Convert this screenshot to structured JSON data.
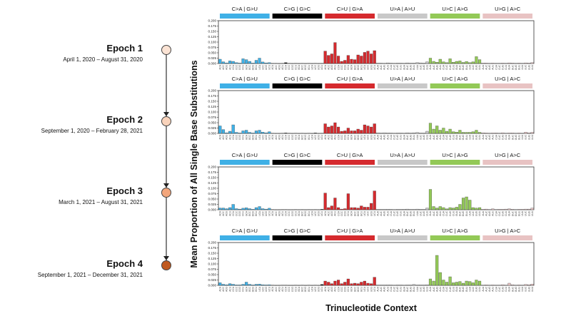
{
  "timeline": [
    {
      "label": "Epoch 1",
      "dates": "April 1, 2020 – August 31, 2020",
      "color": "#fbe3d4"
    },
    {
      "label": "Epoch 2",
      "dates": "September 1, 2020 – February 28, 2021",
      "color": "#f9d3bb"
    },
    {
      "label": "Epoch 3",
      "dates": "March 1, 2021 – August 31, 2021",
      "color": "#f3a67c"
    },
    {
      "label": "Epoch 4",
      "dates": "September 1, 2021 – December 31, 2021",
      "color": "#c0591f"
    }
  ],
  "chart_data": {
    "type": "bar",
    "ylabel": "Mean Proportion of All Single Base Substitutions",
    "xlabel": "Trinucleotide Context",
    "ylim": [
      0,
      0.2
    ],
    "yticks": [
      "0.200",
      "0.175",
      "0.150",
      "0.125",
      "0.100",
      "0.075",
      "0.050",
      "0.025",
      "0.000"
    ],
    "categories": [
      {
        "label": "C>A | G>U",
        "color": "#3fb0e6",
        "contexts": [
          "ACA",
          "ACC",
          "ACG",
          "ACU",
          "CCA",
          "CCC",
          "CCG",
          "CCU",
          "GCA",
          "GCC",
          "GCG",
          "GCU",
          "UCA",
          "UCC",
          "UCG",
          "UCU"
        ]
      },
      {
        "label": "C>G | G>C",
        "color": "#000000",
        "contexts": [
          "ACA",
          "ACC",
          "ACG",
          "ACU",
          "CCA",
          "CCC",
          "CCG",
          "CCU",
          "GCA",
          "GCC",
          "GCG",
          "GCU",
          "UCA",
          "UCC",
          "UCG",
          "UCU"
        ]
      },
      {
        "label": "C>U | G>A",
        "color": "#d52a2e",
        "contexts": [
          "ACA",
          "ACC",
          "ACG",
          "ACU",
          "CCA",
          "CCC",
          "CCG",
          "CCU",
          "GCA",
          "GCC",
          "GCG",
          "GCU",
          "UCA",
          "UCC",
          "UCG",
          "UCU"
        ]
      },
      {
        "label": "U>A | A>U",
        "color": "#c8c8c8",
        "contexts": [
          "AUA",
          "AUC",
          "AUG",
          "AUU",
          "CUA",
          "CUC",
          "CUG",
          "CUU",
          "GUA",
          "GUC",
          "GUG",
          "GUU",
          "UUA",
          "UUC",
          "UUG",
          "UUU"
        ]
      },
      {
        "label": "U>C | A>G",
        "color": "#93c957",
        "contexts": [
          "AUA",
          "AUC",
          "AUG",
          "AUU",
          "CUA",
          "CUC",
          "CUG",
          "CUU",
          "GUA",
          "GUC",
          "GUG",
          "GUU",
          "UUA",
          "UUC",
          "UUG",
          "UUU"
        ]
      },
      {
        "label": "U>G | A>C",
        "color": "#e8c3c3",
        "contexts": [
          "AUA",
          "AUC",
          "AUG",
          "AUU",
          "CUA",
          "CUC",
          "CUG",
          "CUU",
          "GUA",
          "GUC",
          "GUG",
          "GUU",
          "UUA",
          "UUC",
          "UUG",
          "UUU"
        ]
      }
    ],
    "panels": [
      {
        "name": "Epoch 1",
        "series": [
          [
            0.02,
            0.008,
            0.003,
            0.012,
            0.01,
            0.004,
            0.002,
            0.022,
            0.018,
            0.01,
            0.002,
            0.015,
            0.025,
            0.007,
            0.003,
            0.004
          ],
          [
            0.001,
            0.001,
            0.0,
            0.001,
            0.004,
            0.001,
            0.0,
            0.001,
            0.0,
            0.001,
            0.0,
            0.001,
            0.0,
            0.001,
            0.0,
            0.001
          ],
          [
            0.058,
            0.038,
            0.045,
            0.098,
            0.035,
            0.01,
            0.015,
            0.038,
            0.02,
            0.018,
            0.04,
            0.035,
            0.052,
            0.058,
            0.045,
            0.06
          ],
          [
            0.002,
            0.002,
            0.001,
            0.003,
            0.002,
            0.001,
            0.002,
            0.002,
            0.001,
            0.003,
            0.002,
            0.002,
            0.004,
            0.003,
            0.002,
            0.008
          ],
          [
            0.025,
            0.01,
            0.006,
            0.02,
            0.008,
            0.004,
            0.022,
            0.006,
            0.01,
            0.012,
            0.005,
            0.009,
            0.004,
            0.008,
            0.032,
            0.018
          ],
          [
            0.002,
            0.002,
            0.001,
            0.002,
            0.001,
            0.001,
            0.002,
            0.001,
            0.003,
            0.002,
            0.001,
            0.002,
            0.001,
            0.003,
            0.002,
            0.004
          ]
        ]
      },
      {
        "name": "Epoch 2",
        "series": [
          [
            0.035,
            0.018,
            0.003,
            0.01,
            0.04,
            0.005,
            0.002,
            0.012,
            0.015,
            0.005,
            0.002,
            0.012,
            0.015,
            0.006,
            0.003,
            0.008
          ],
          [
            0.001,
            0.0,
            0.0,
            0.001,
            0.002,
            0.001,
            0.0,
            0.001,
            0.0,
            0.001,
            0.0,
            0.001,
            0.0,
            0.002,
            0.0,
            0.001
          ],
          [
            0.045,
            0.03,
            0.035,
            0.05,
            0.03,
            0.01,
            0.012,
            0.025,
            0.012,
            0.012,
            0.02,
            0.015,
            0.04,
            0.035,
            0.03,
            0.045
          ],
          [
            0.003,
            0.002,
            0.003,
            0.002,
            0.002,
            0.001,
            0.002,
            0.002,
            0.001,
            0.003,
            0.002,
            0.003,
            0.004,
            0.002,
            0.002,
            0.01
          ],
          [
            0.048,
            0.02,
            0.035,
            0.015,
            0.025,
            0.01,
            0.02,
            0.008,
            0.006,
            0.015,
            0.005,
            0.005,
            0.005,
            0.008,
            0.015,
            0.005
          ],
          [
            0.003,
            0.002,
            0.001,
            0.002,
            0.002,
            0.001,
            0.003,
            0.001,
            0.002,
            0.002,
            0.001,
            0.002,
            0.001,
            0.006,
            0.003,
            0.005
          ]
        ]
      },
      {
        "name": "Epoch 3",
        "series": [
          [
            0.008,
            0.008,
            0.005,
            0.01,
            0.025,
            0.005,
            0.003,
            0.007,
            0.009,
            0.005,
            0.002,
            0.01,
            0.015,
            0.005,
            0.003,
            0.007
          ],
          [
            0.001,
            0.0,
            0.0,
            0.001,
            0.001,
            0.0,
            0.0,
            0.001,
            0.0,
            0.001,
            0.0,
            0.001,
            0.0,
            0.001,
            0.0,
            0.002
          ],
          [
            0.078,
            0.01,
            0.018,
            0.055,
            0.01,
            0.003,
            0.005,
            0.075,
            0.01,
            0.01,
            0.008,
            0.018,
            0.012,
            0.012,
            0.03,
            0.088
          ],
          [
            0.002,
            0.002,
            0.002,
            0.002,
            0.002,
            0.001,
            0.002,
            0.002,
            0.002,
            0.003,
            0.002,
            0.002,
            0.003,
            0.002,
            0.002,
            0.008
          ],
          [
            0.095,
            0.015,
            0.008,
            0.015,
            0.01,
            0.004,
            0.01,
            0.008,
            0.012,
            0.025,
            0.055,
            0.06,
            0.045,
            0.01,
            0.008,
            0.01
          ],
          [
            0.002,
            0.003,
            0.001,
            0.004,
            0.001,
            0.002,
            0.002,
            0.003,
            0.004,
            0.002,
            0.001,
            0.002,
            0.002,
            0.003,
            0.003,
            0.008
          ]
        ]
      },
      {
        "name": "Epoch 4",
        "series": [
          [
            0.012,
            0.005,
            0.003,
            0.008,
            0.005,
            0.002,
            0.002,
            0.005,
            0.015,
            0.005,
            0.002,
            0.005,
            0.006,
            0.003,
            0.002,
            0.003
          ],
          [
            0.001,
            0.0,
            0.0,
            0.001,
            0.001,
            0.0,
            0.0,
            0.001,
            0.0,
            0.001,
            0.0,
            0.001,
            0.0,
            0.001,
            0.0,
            0.004
          ],
          [
            0.02,
            0.015,
            0.008,
            0.02,
            0.025,
            0.008,
            0.015,
            0.03,
            0.008,
            0.01,
            0.008,
            0.015,
            0.02,
            0.01,
            0.008,
            0.038
          ],
          [
            0.002,
            0.002,
            0.002,
            0.002,
            0.002,
            0.001,
            0.002,
            0.002,
            0.001,
            0.002,
            0.002,
            0.004,
            0.002,
            0.002,
            0.002,
            0.003
          ],
          [
            0.03,
            0.02,
            0.14,
            0.06,
            0.025,
            0.015,
            0.04,
            0.012,
            0.015,
            0.018,
            0.01,
            0.02,
            0.018,
            0.012,
            0.025,
            0.02
          ],
          [
            0.001,
            0.002,
            0.001,
            0.002,
            0.001,
            0.001,
            0.003,
            0.001,
            0.01,
            0.003,
            0.001,
            0.002,
            0.001,
            0.004,
            0.003,
            0.006
          ]
        ]
      }
    ]
  }
}
